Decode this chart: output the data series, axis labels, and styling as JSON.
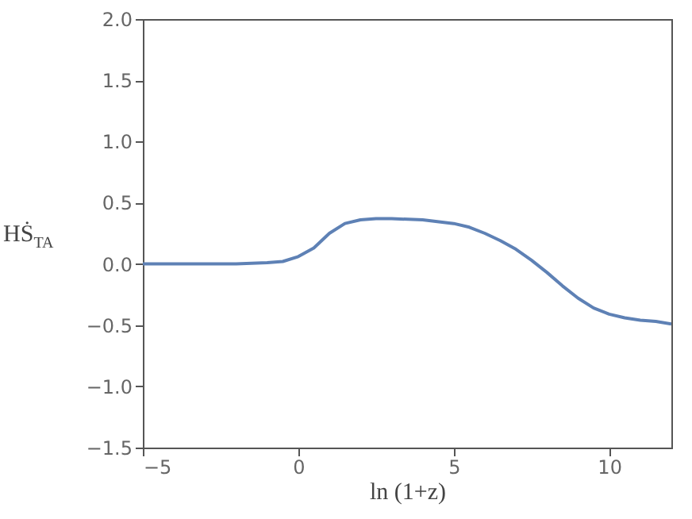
{
  "chart_data": {
    "type": "line",
    "xlabel": "ln (1+z)",
    "ylabel": "HṠ$_{TA}$",
    "x": [
      -5,
      -4,
      -3,
      -2,
      -1,
      -0.5,
      0,
      0.5,
      1,
      1.5,
      2,
      2.5,
      3,
      4,
      5,
      5.5,
      6,
      6.5,
      7,
      7.5,
      8,
      8.5,
      9,
      9.5,
      10,
      10.5,
      11,
      11.5,
      12
    ],
    "series": [
      {
        "color": "#5e81b5",
        "values": [
          0,
          0,
          0,
          0,
          0.01,
          0.02,
          0.06,
          0.13,
          0.25,
          0.33,
          0.36,
          0.37,
          0.37,
          0.36,
          0.33,
          0.3,
          0.25,
          0.19,
          0.12,
          0.03,
          -0.07,
          -0.18,
          -0.28,
          -0.36,
          -0.41,
          -0.44,
          -0.46,
          -0.47,
          -0.49
        ]
      }
    ],
    "xlim": [
      -5,
      12
    ],
    "xticks": [
      {
        "value": -5,
        "label": "−5"
      },
      0,
      5,
      10
    ],
    "ylim": [
      -1.5,
      2.0
    ],
    "yticks": [
      {
        "value": -1.5,
        "label": "−1.5"
      },
      {
        "value": -1,
        "label": "−1.0"
      },
      {
        "value": -0.5,
        "label": "−0.5"
      },
      {
        "value": 0,
        "label": "0.0"
      },
      {
        "value": 0.5,
        "label": "0.5"
      },
      {
        "value": 1,
        "label": "1.0"
      },
      {
        "value": 1.5,
        "label": "1.5"
      },
      {
        "value": 2,
        "label": "2.0"
      }
    ],
    "grid": false
  }
}
